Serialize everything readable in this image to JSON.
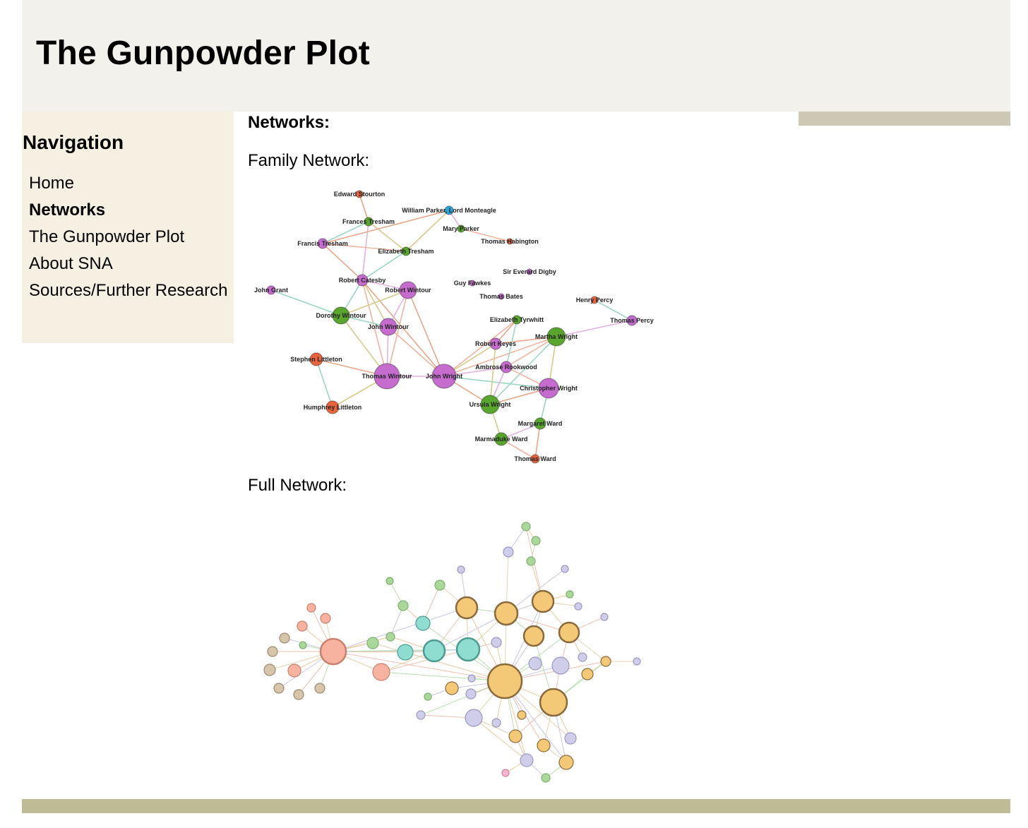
{
  "header": {
    "title": "The Gunpowder Plot"
  },
  "sidebar": {
    "heading": "Navigation",
    "items": [
      {
        "label": "Home"
      },
      {
        "label": "Networks"
      },
      {
        "label": "The Gunpowder Plot"
      },
      {
        "label": "About SNA"
      },
      {
        "label": "Sources/Further Research"
      }
    ]
  },
  "main": {
    "heading": "Networks:",
    "family_title": "Family Network:",
    "full_title": "Full Network:"
  },
  "family_network": {
    "nodes": [
      {
        "id": "edward-stourton",
        "label": "Edward Stourton",
        "color": "#e8643c"
      },
      {
        "id": "william-parker",
        "label": "William Parker, Lord Monteagle",
        "color": "#2aa7d6"
      },
      {
        "id": "frances-tresham",
        "label": "Frances Tresham",
        "color": "#5aa52e"
      },
      {
        "id": "mary-parker",
        "label": "Mary Parker",
        "color": "#5aa52e"
      },
      {
        "id": "thomas-habington",
        "label": "Thomas Habington",
        "color": "#e8643c"
      },
      {
        "id": "francis-tresham",
        "label": "Francis Tresham",
        "color": "#c66ccf"
      },
      {
        "id": "elizabeth-tresham",
        "label": "Elizabeth Tresham",
        "color": "#5aa52e"
      },
      {
        "id": "everard-digby",
        "label": "Sir Everard Digby",
        "color": "#c66ccf"
      },
      {
        "id": "robert-catesby",
        "label": "Robert Catesby",
        "color": "#c66ccf"
      },
      {
        "id": "guy-fawkes",
        "label": "Guy Fawkes",
        "color": "#c66ccf"
      },
      {
        "id": "john-grant",
        "label": "John Grant",
        "color": "#c66ccf"
      },
      {
        "id": "robert-wintour",
        "label": "Robert Wintour",
        "color": "#c66ccf"
      },
      {
        "id": "thomas-bates",
        "label": "Thomas Bates",
        "color": "#c66ccf"
      },
      {
        "id": "henry-percy",
        "label": "Henry Percy",
        "color": "#e8643c"
      },
      {
        "id": "dorothy-wintour",
        "label": "Dorothy Wintour",
        "color": "#5aa52e"
      },
      {
        "id": "elizabeth-tyrwhitt",
        "label": "Elizabeth Tyrwhitt",
        "color": "#5aa52e"
      },
      {
        "id": "thomas-percy",
        "label": "Thomas Percy",
        "color": "#c66ccf"
      },
      {
        "id": "john-wintour",
        "label": "John Wintour",
        "color": "#c66ccf"
      },
      {
        "id": "martha-wright",
        "label": "Martha Wright",
        "color": "#5aa52e"
      },
      {
        "id": "robert-keyes",
        "label": "Robert Keyes",
        "color": "#c66ccf"
      },
      {
        "id": "stephen-littleton",
        "label": "Stephen Littleton",
        "color": "#e8643c"
      },
      {
        "id": "ambrose-rookwood",
        "label": "Ambrose Rookwood",
        "color": "#c66ccf"
      },
      {
        "id": "thomas-wintour",
        "label": "Thomas Wintour",
        "color": "#c66ccf"
      },
      {
        "id": "john-wright",
        "label": "John Wright",
        "color": "#c66ccf"
      },
      {
        "id": "christopher-wright",
        "label": "Christopher Wright",
        "color": "#c66ccf"
      },
      {
        "id": "ursula-wright",
        "label": "Ursula Wright",
        "color": "#5aa52e"
      },
      {
        "id": "humphrey-littleton",
        "label": "Humphrey Littleton",
        "color": "#e8643c"
      },
      {
        "id": "margaret-ward",
        "label": "Margaret Ward",
        "color": "#5aa52e"
      },
      {
        "id": "marmaduke-ward",
        "label": "Marmaduke Ward",
        "color": "#5aa52e"
      },
      {
        "id": "thomas-ward",
        "label": "Thomas Ward",
        "color": "#e8643c"
      }
    ],
    "edges": [
      [
        "edward-stourton",
        "frances-tresham"
      ],
      [
        "frances-tresham",
        "francis-tresham"
      ],
      [
        "frances-tresham",
        "elizabeth-tresham"
      ],
      [
        "frances-tresham",
        "robert-catesby"
      ],
      [
        "francis-tresham",
        "elizabeth-tresham"
      ],
      [
        "francis-tresham",
        "robert-catesby"
      ],
      [
        "elizabeth-tresham",
        "robert-catesby"
      ],
      [
        "elizabeth-tresham",
        "william-parker"
      ],
      [
        "william-parker",
        "mary-parker"
      ],
      [
        "mary-parker",
        "thomas-habington"
      ],
      [
        "william-parker",
        "francis-tresham"
      ],
      [
        "robert-catesby",
        "dorothy-wintour"
      ],
      [
        "robert-catesby",
        "john-wintour"
      ],
      [
        "robert-catesby",
        "robert-wintour"
      ],
      [
        "robert-catesby",
        "thomas-wintour"
      ],
      [
        "robert-catesby",
        "john-wright"
      ],
      [
        "john-grant",
        "dorothy-wintour"
      ],
      [
        "robert-wintour",
        "dorothy-wintour"
      ],
      [
        "robert-wintour",
        "john-wintour"
      ],
      [
        "robert-wintour",
        "thomas-wintour"
      ],
      [
        "robert-wintour",
        "john-wright"
      ],
      [
        "dorothy-wintour",
        "john-wintour"
      ],
      [
        "dorothy-wintour",
        "thomas-wintour"
      ],
      [
        "john-wintour",
        "thomas-wintour"
      ],
      [
        "john-wintour",
        "john-wright"
      ],
      [
        "stephen-littleton",
        "thomas-wintour"
      ],
      [
        "stephen-littleton",
        "humphrey-littleton"
      ],
      [
        "humphrey-littleton",
        "thomas-wintour"
      ],
      [
        "thomas-wintour",
        "john-wright"
      ],
      [
        "john-wright",
        "martha-wright"
      ],
      [
        "john-wright",
        "ursula-wright"
      ],
      [
        "john-wright",
        "christopher-wright"
      ],
      [
        "john-wright",
        "robert-keyes"
      ],
      [
        "john-wright",
        "ambrose-rookwood"
      ],
      [
        "john-wright",
        "elizabeth-tyrwhitt"
      ],
      [
        "martha-wright",
        "robert-keyes"
      ],
      [
        "martha-wright",
        "ursula-wright"
      ],
      [
        "martha-wright",
        "christopher-wright"
      ],
      [
        "martha-wright",
        "thomas-percy"
      ],
      [
        "martha-wright",
        "ambrose-rookwood"
      ],
      [
        "elizabeth-tyrwhitt",
        "robert-keyes"
      ],
      [
        "elizabeth-tyrwhitt",
        "ambrose-rookwood"
      ],
      [
        "robert-keyes",
        "ursula-wright"
      ],
      [
        "ambrose-rookwood",
        "ursula-wright"
      ],
      [
        "ambrose-rookwood",
        "christopher-wright"
      ],
      [
        "christopher-wright",
        "ursula-wright"
      ],
      [
        "christopher-wright",
        "margaret-ward"
      ],
      [
        "ursula-wright",
        "marmaduke-ward"
      ],
      [
        "margaret-ward",
        "marmaduke-ward"
      ],
      [
        "marmaduke-ward",
        "thomas-ward"
      ],
      [
        "margaret-ward",
        "thomas-ward"
      ],
      [
        "henry-percy",
        "thomas-percy"
      ]
    ]
  }
}
